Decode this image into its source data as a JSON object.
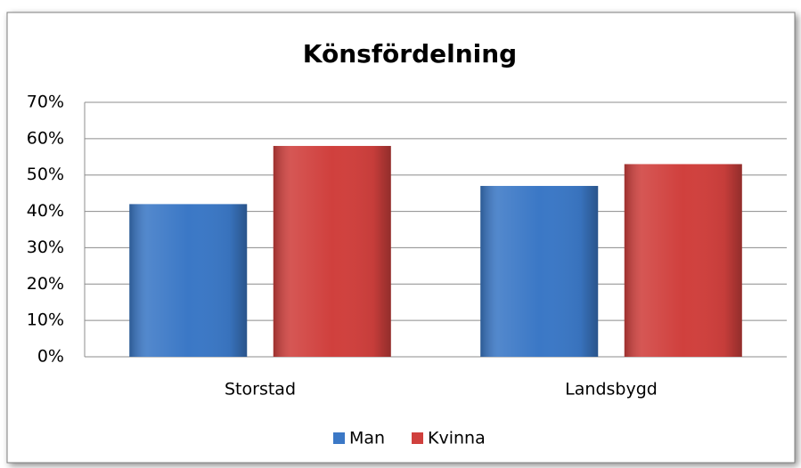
{
  "chart_data": {
    "type": "bar",
    "title": "Könsfördelning",
    "categories": [
      "Storstad",
      "Landsbygd"
    ],
    "series": [
      {
        "name": "Man",
        "color": "#3b78c6",
        "values": [
          42,
          47
        ]
      },
      {
        "name": "Kvinna",
        "color": "#d0403d",
        "values": [
          58,
          53
        ]
      }
    ],
    "ylim": [
      0,
      70
    ],
    "yticks": [
      {
        "value": 0,
        "label": "0%"
      },
      {
        "value": 10,
        "label": "10%"
      },
      {
        "value": 20,
        "label": "20%"
      },
      {
        "value": 30,
        "label": "30%"
      },
      {
        "value": 40,
        "label": "40%"
      },
      {
        "value": 50,
        "label": "50%"
      },
      {
        "value": 60,
        "label": "60%"
      },
      {
        "value": 70,
        "label": "70%"
      }
    ],
    "grid": true,
    "legend": "bottom"
  }
}
